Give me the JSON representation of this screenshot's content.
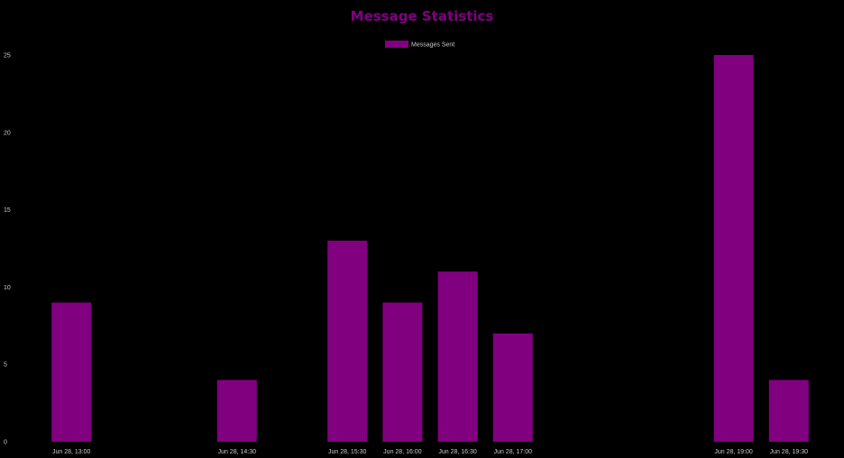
{
  "chart_data": {
    "type": "bar",
    "title": "Message Statistics",
    "xlabel": "",
    "ylabel": "",
    "x_axis_type": "time",
    "x_range": [
      "Jun 28, 12:30",
      "Jun 28, 20:00"
    ],
    "bar_interval_minutes": 30,
    "x_ticks": [
      "Jun 28, 13:00",
      "Jun 28, 14:30",
      "Jun 28, 15:30",
      "Jun 28, 16:00",
      "Jun 28, 16:30",
      "Jun 28, 17:00",
      "Jun 28, 19:00",
      "Jun 28, 19:30"
    ],
    "categories": [
      "Jun 28, 13:00",
      "Jun 28, 14:30",
      "Jun 28, 15:30",
      "Jun 28, 16:00",
      "Jun 28, 16:30",
      "Jun 28, 17:00",
      "Jun 28, 19:00",
      "Jun 28, 19:30"
    ],
    "series": [
      {
        "name": "Messages Sent",
        "color": "#800080",
        "values": [
          9,
          4,
          13,
          9,
          11,
          7,
          25,
          4
        ]
      }
    ],
    "ylim": [
      0,
      25
    ],
    "y_ticks": [
      0,
      5,
      10,
      15,
      20,
      25
    ],
    "grid": false,
    "legend_position": "top-center",
    "background": "#000000"
  }
}
